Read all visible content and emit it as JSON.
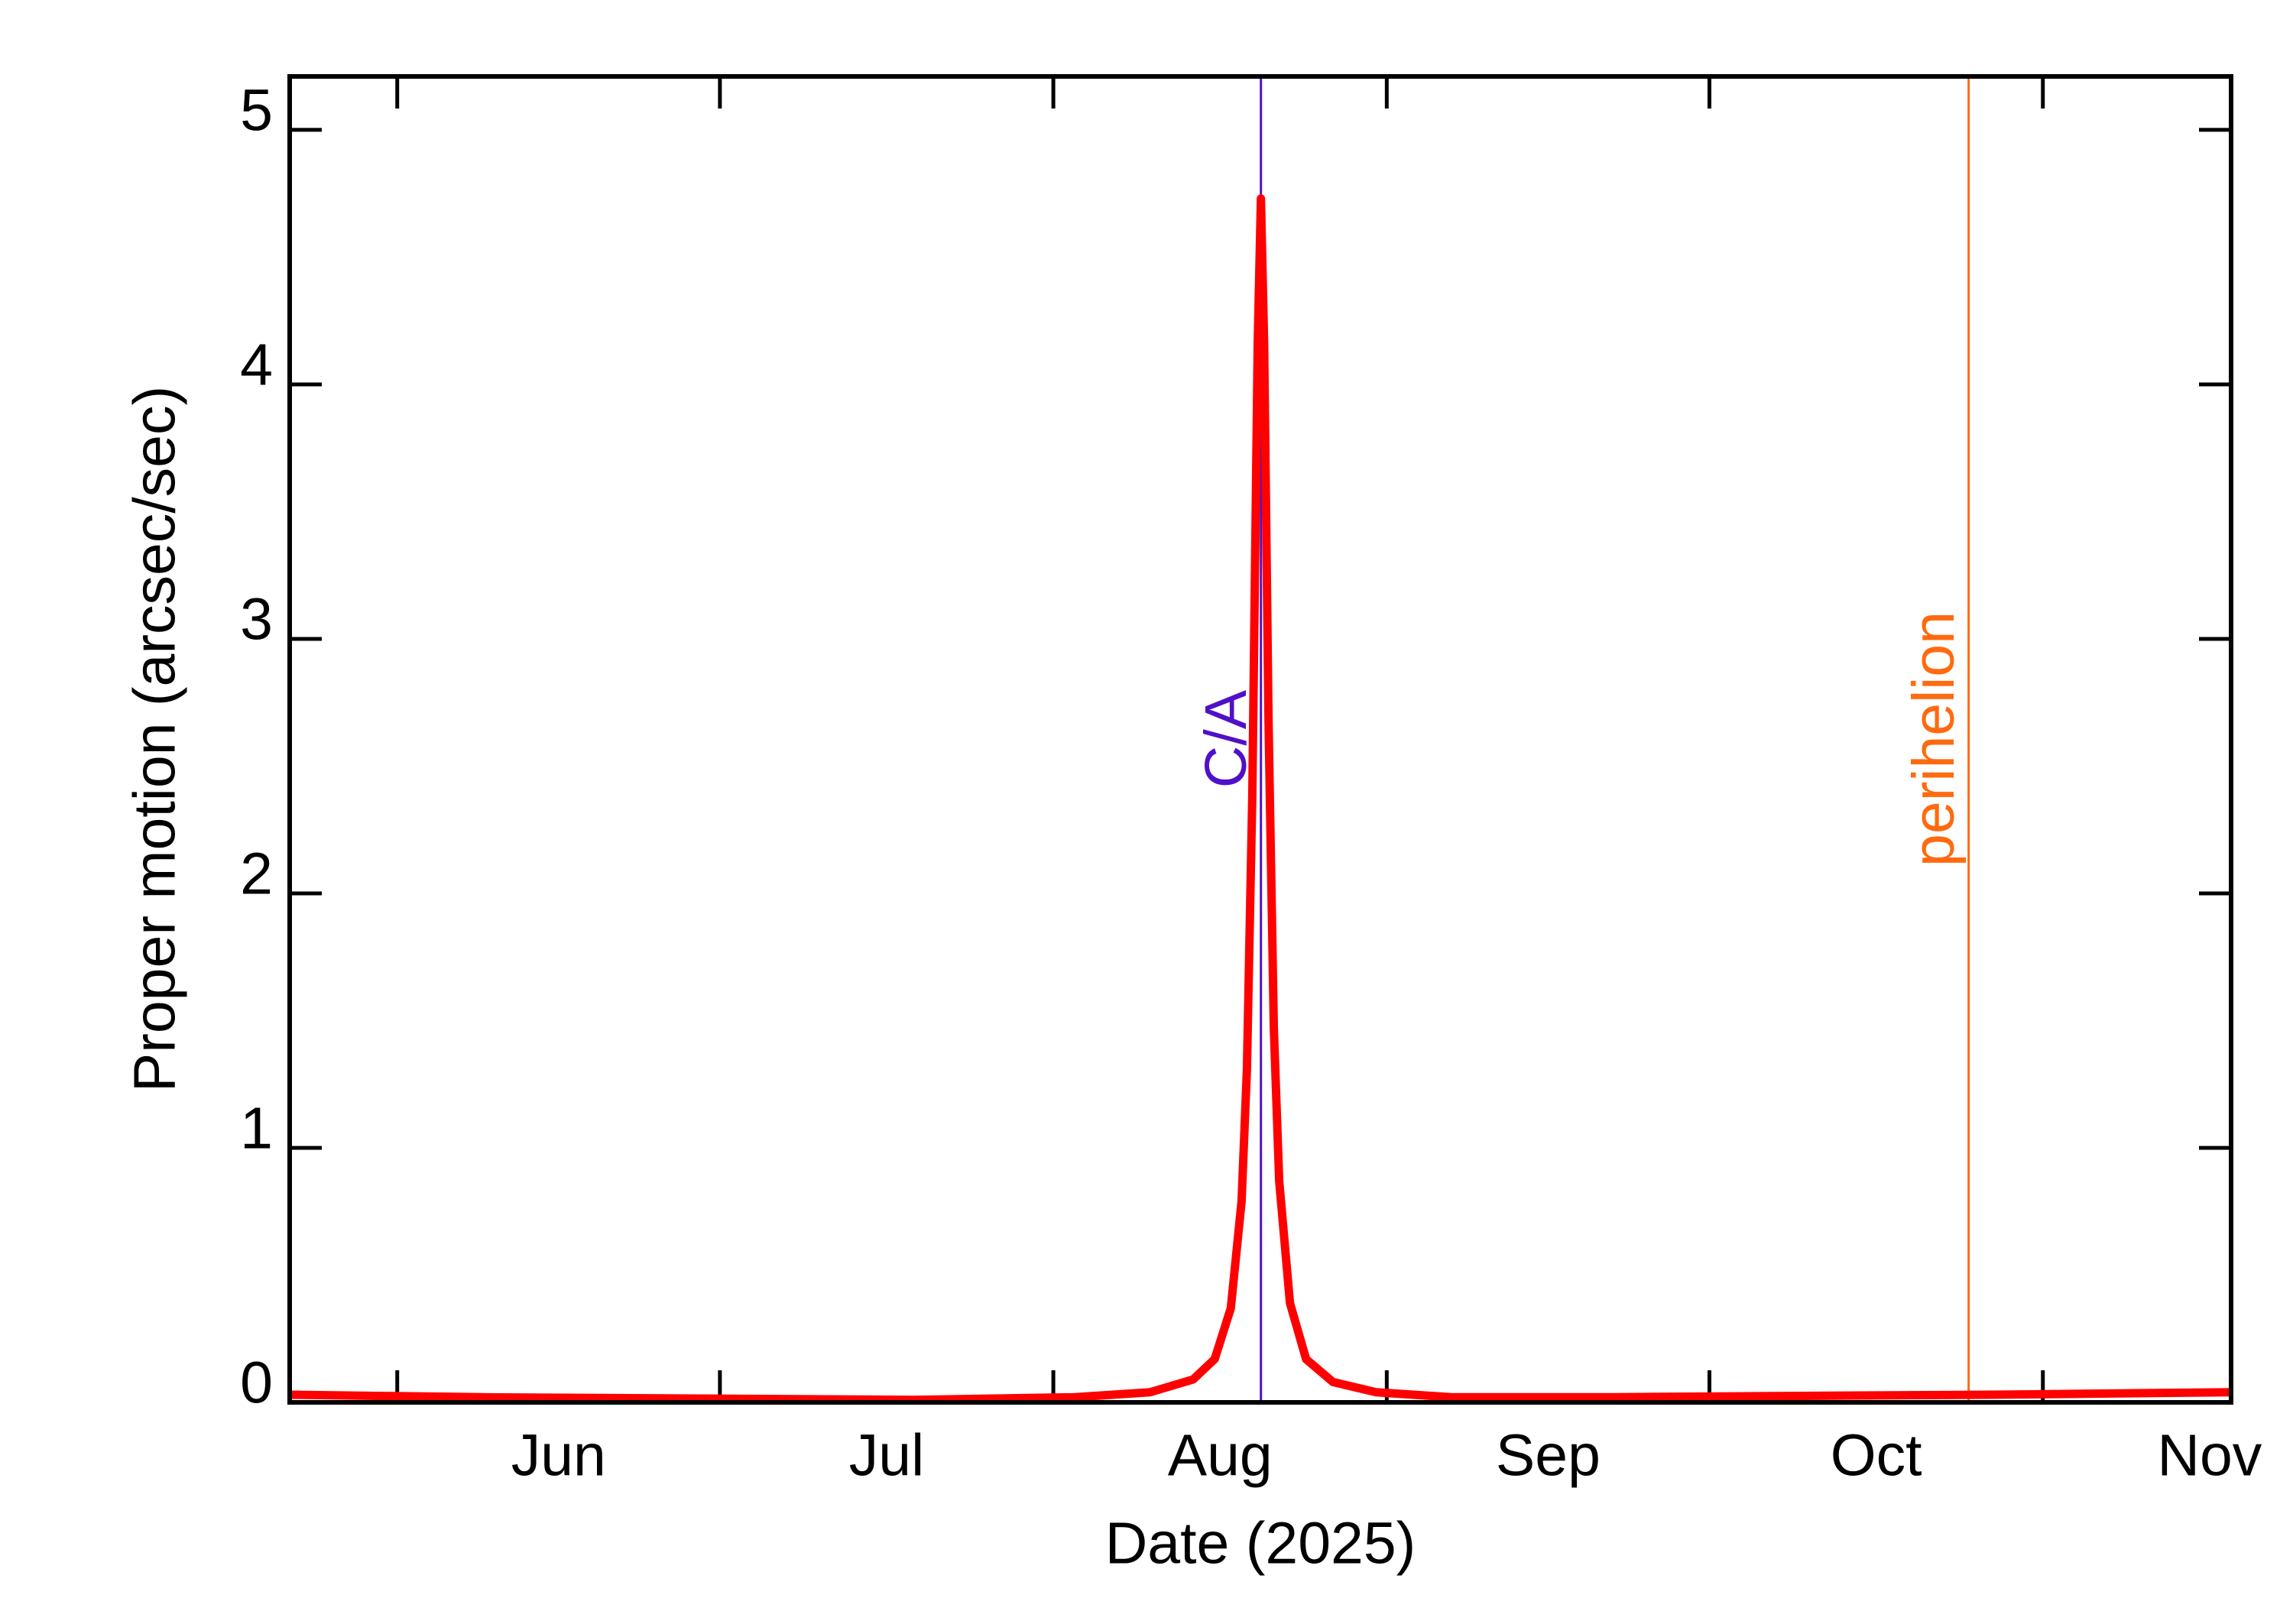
{
  "chart_data": {
    "type": "line",
    "x_label": "Date (2025)",
    "y_label": "Proper motion (arcsec/sec)",
    "x": [
      142,
      160,
      180,
      200,
      215,
      222,
      226,
      228,
      229.5,
      230.5,
      231,
      231.5,
      232,
      232.3,
      232.6,
      233,
      233.5,
      234,
      235,
      236.5,
      239,
      243,
      250,
      265,
      280,
      300,
      322.5
    ],
    "values": [
      0.03,
      0.02,
      0.015,
      0.01,
      0.02,
      0.04,
      0.09,
      0.17,
      0.37,
      0.79,
      1.31,
      2.38,
      4.16,
      4.73,
      4.16,
      2.69,
      1.47,
      0.87,
      0.39,
      0.17,
      0.08,
      0.04,
      0.02,
      0.02,
      0.025,
      0.03,
      0.04
    ],
    "color": "#ff0000",
    "xlim": [
      142,
      322.5
    ],
    "ylim": [
      0,
      5.21
    ],
    "xticks": [
      {
        "value": 152,
        "label": "Jun"
      },
      {
        "value": 182,
        "label": "Jul"
      },
      {
        "value": 213,
        "label": "Aug"
      },
      {
        "value": 244,
        "label": "Sep"
      },
      {
        "value": 274,
        "label": "Oct"
      },
      {
        "value": 305,
        "label": "Nov"
      }
    ],
    "yticks": [
      0,
      1,
      2,
      3,
      4,
      5
    ],
    "markers": [
      {
        "label": "C/A",
        "x": 232.3,
        "color": "#5010c8"
      },
      {
        "label": "perihelion",
        "x": 298.1,
        "color": "#ff6a10"
      }
    ]
  }
}
